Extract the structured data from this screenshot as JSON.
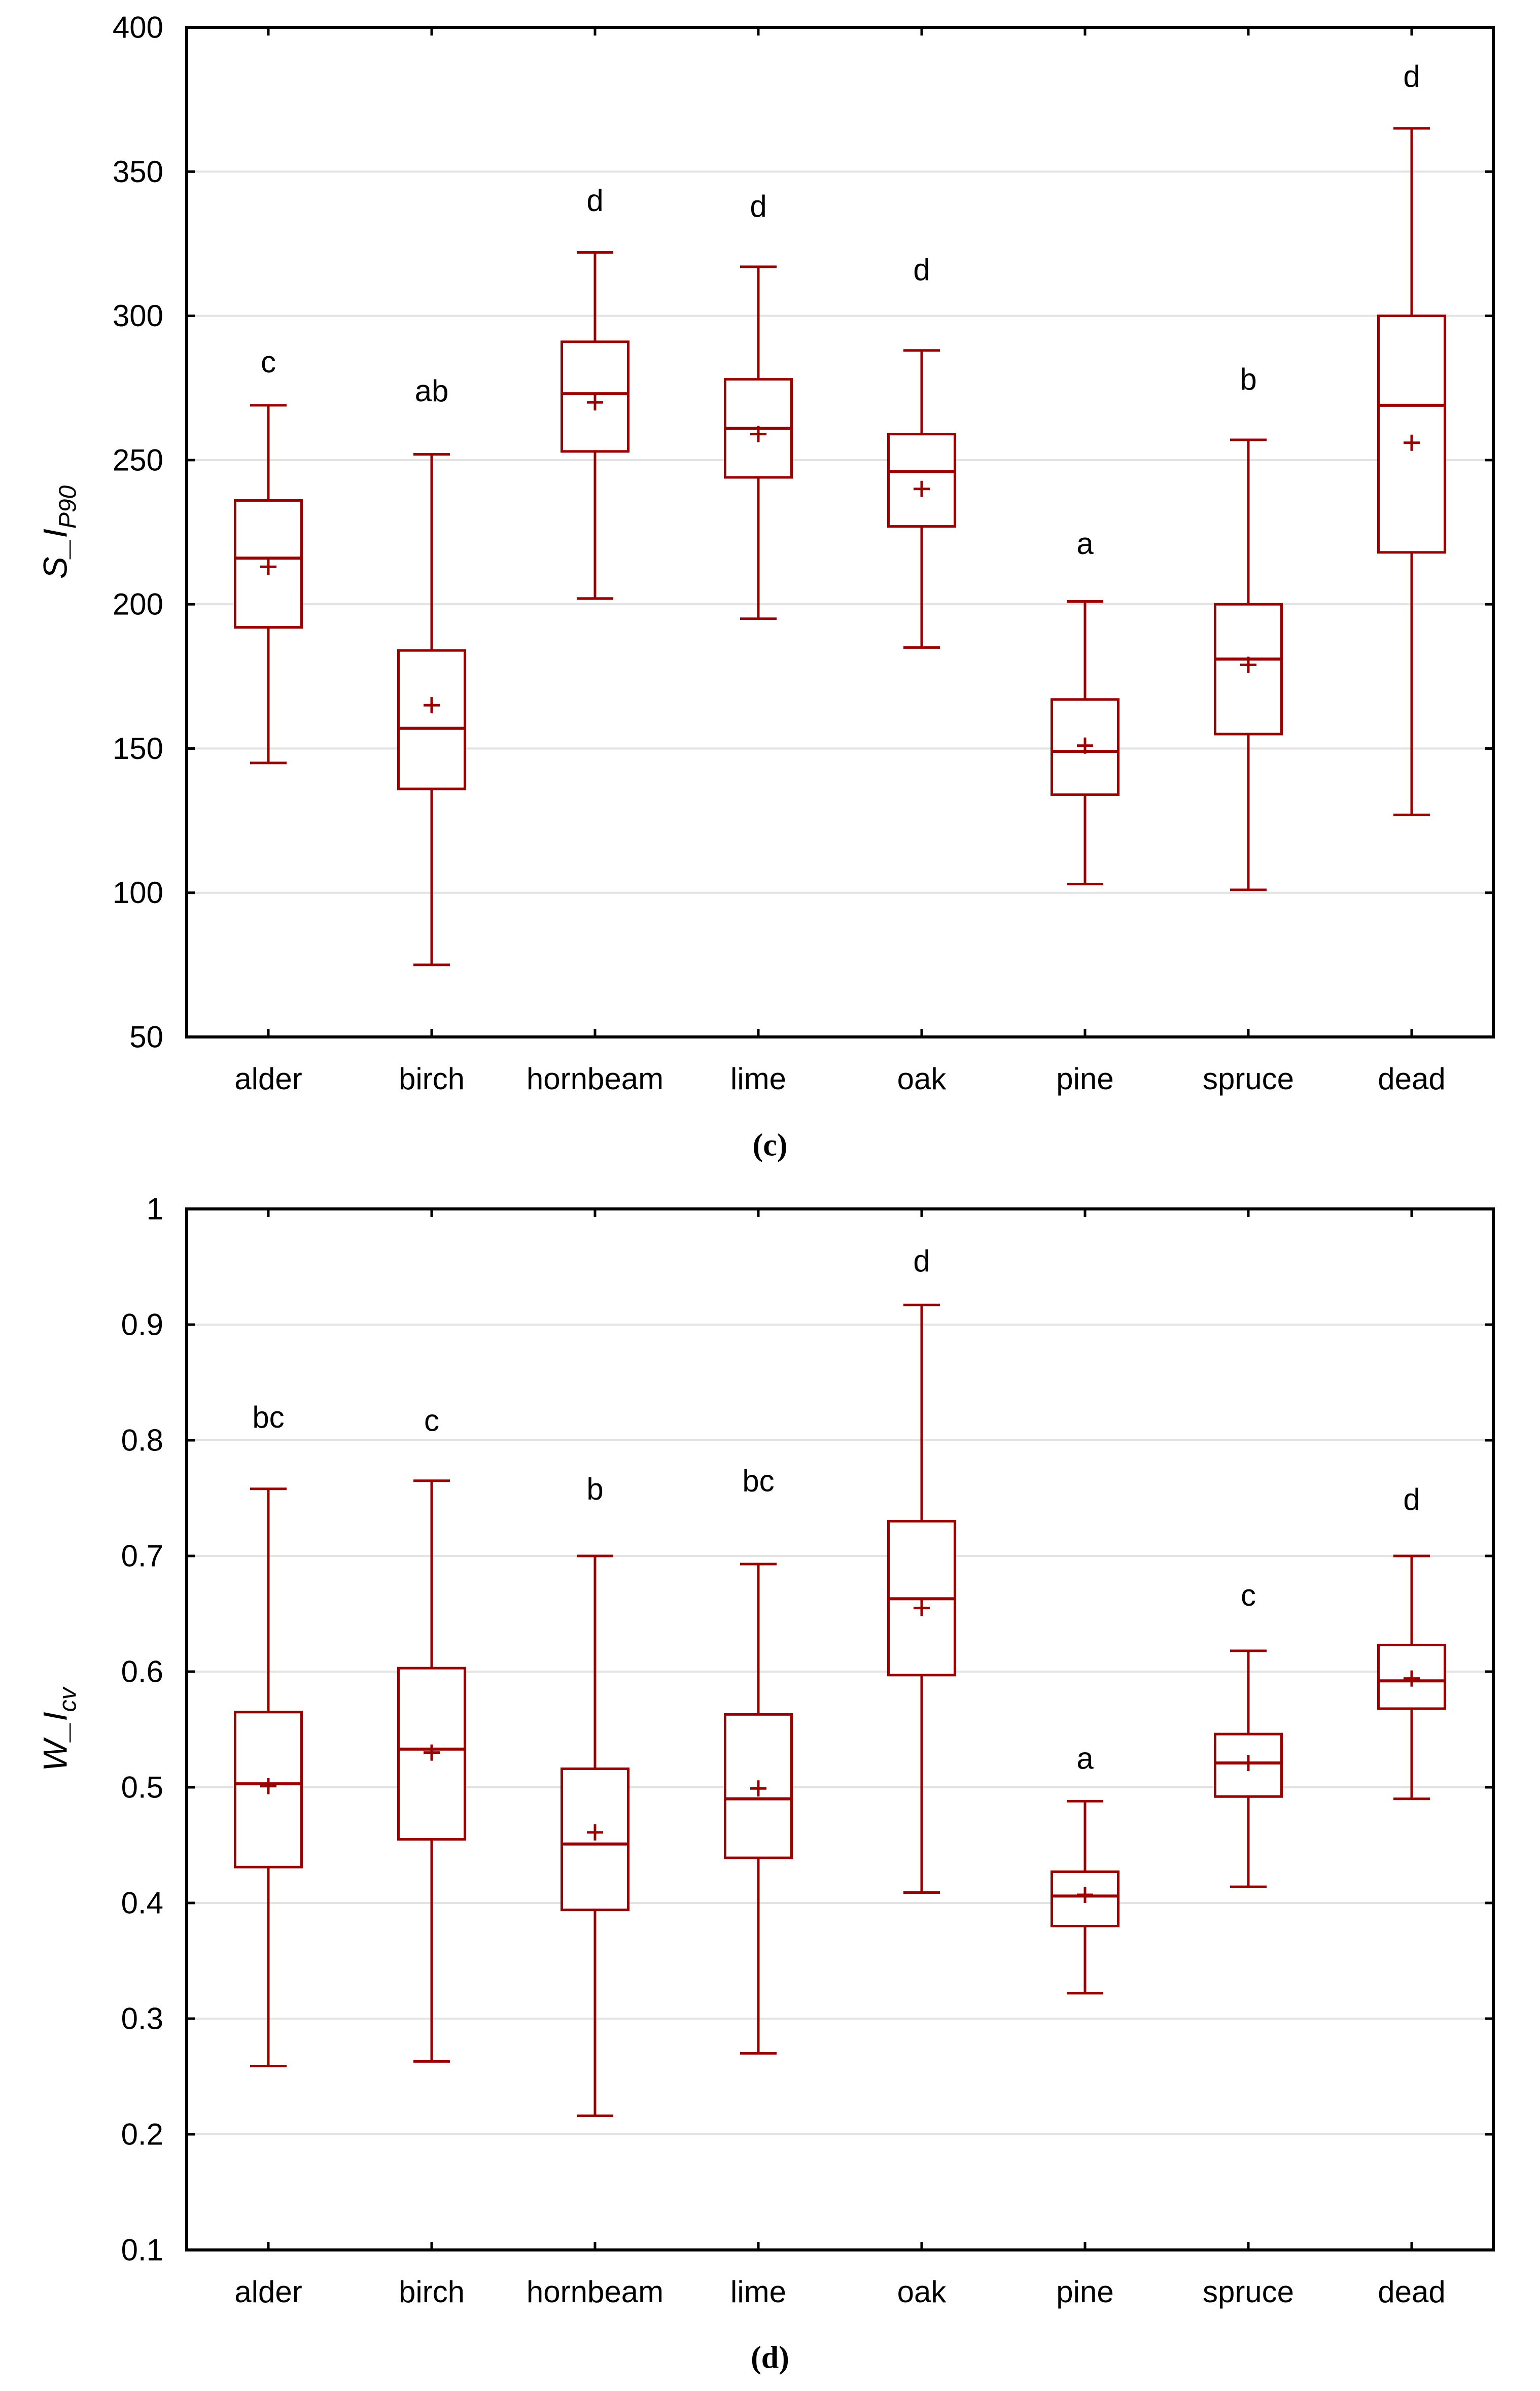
{
  "style": {
    "box_color": "#990000",
    "grid_color": "#e3e3e3",
    "axis_color": "#000000",
    "text_color": "#000000",
    "background": "#ffffff"
  },
  "chart_data": [
    {
      "type": "box",
      "title": "(c)",
      "ylabel": {
        "main": "S_I",
        "sub": "P90"
      },
      "categories": [
        "alder",
        "birch",
        "hornbeam",
        "lime",
        "oak",
        "pine",
        "spruce",
        "dead"
      ],
      "ylim": [
        50,
        400
      ],
      "yticks": [
        400,
        350,
        300,
        250,
        200,
        150,
        100,
        50
      ],
      "ytick_labels": [
        "400",
        "350",
        "300",
        "250",
        "200",
        "150",
        "100",
        "50"
      ],
      "grid": "horizontal",
      "legend": "none",
      "series": [
        {
          "name": "alder",
          "letter": "c",
          "letter_y": 284,
          "whisker_low": 145,
          "q1": 192,
          "median": 216,
          "mean": 213,
          "q3": 236,
          "whisker_high": 269
        },
        {
          "name": "birch",
          "letter": "ab",
          "letter_y": 274,
          "whisker_low": 75,
          "q1": 136,
          "median": 157,
          "mean": 165,
          "q3": 184,
          "whisker_high": 252
        },
        {
          "name": "hornbeam",
          "letter": "d",
          "letter_y": 340,
          "whisker_low": 202,
          "q1": 253,
          "median": 273,
          "mean": 270,
          "q3": 291,
          "whisker_high": 322
        },
        {
          "name": "lime",
          "letter": "d",
          "letter_y": 338,
          "whisker_low": 195,
          "q1": 244,
          "median": 261,
          "mean": 259,
          "q3": 278,
          "whisker_high": 317
        },
        {
          "name": "oak",
          "letter": "d",
          "letter_y": 316,
          "whisker_low": 185,
          "q1": 227,
          "median": 246,
          "mean": 240,
          "q3": 259,
          "whisker_high": 288
        },
        {
          "name": "pine",
          "letter": "a",
          "letter_y": 221,
          "whisker_low": 103,
          "q1": 134,
          "median": 149,
          "mean": 151,
          "q3": 167,
          "whisker_high": 201
        },
        {
          "name": "spruce",
          "letter": "b",
          "letter_y": 278,
          "whisker_low": 101,
          "q1": 155,
          "median": 181,
          "mean": 179,
          "q3": 200,
          "whisker_high": 257
        },
        {
          "name": "dead",
          "letter": "d",
          "letter_y": 383,
          "whisker_low": 127,
          "q1": 218,
          "median": 269,
          "mean": 256,
          "q3": 300,
          "whisker_high": 365
        }
      ]
    },
    {
      "type": "box",
      "title": "(d)",
      "ylabel": {
        "main": "W_I",
        "sub": "cv"
      },
      "categories": [
        "alder",
        "birch",
        "hornbeam",
        "lime",
        "oak",
        "pine",
        "spruce",
        "dead"
      ],
      "ylim": [
        0.1,
        1
      ],
      "yticks": [
        1,
        0.9,
        0.8,
        0.7,
        0.6,
        0.5,
        0.4,
        0.3,
        0.2,
        0.1
      ],
      "ytick_labels": [
        "1",
        "0.9",
        "0.8",
        "0.7",
        "0.6",
        "0.5",
        "0.4",
        "0.3",
        "0.2",
        "0.1"
      ],
      "grid": "horizontal",
      "legend": "none",
      "series": [
        {
          "name": "alder",
          "letter": "bc",
          "letter_y": 0.82,
          "whisker_low": 0.259,
          "q1": 0.431,
          "median": 0.503,
          "mean": 0.501,
          "q3": 0.565,
          "whisker_high": 0.758
        },
        {
          "name": "birch",
          "letter": "c",
          "letter_y": 0.817,
          "whisker_low": 0.263,
          "q1": 0.455,
          "median": 0.533,
          "mean": 0.53,
          "q3": 0.603,
          "whisker_high": 0.765
        },
        {
          "name": "hornbeam",
          "letter": "b",
          "letter_y": 0.758,
          "whisker_low": 0.216,
          "q1": 0.394,
          "median": 0.451,
          "mean": 0.461,
          "q3": 0.516,
          "whisker_high": 0.7
        },
        {
          "name": "lime",
          "letter": "bc",
          "letter_y": 0.765,
          "whisker_low": 0.27,
          "q1": 0.439,
          "median": 0.49,
          "mean": 0.499,
          "q3": 0.563,
          "whisker_high": 0.693
        },
        {
          "name": "oak",
          "letter": "d",
          "letter_y": 0.955,
          "whisker_low": 0.409,
          "q1": 0.597,
          "median": 0.663,
          "mean": 0.655,
          "q3": 0.73,
          "whisker_high": 0.917
        },
        {
          "name": "pine",
          "letter": "a",
          "letter_y": 0.525,
          "whisker_low": 0.322,
          "q1": 0.38,
          "median": 0.406,
          "mean": 0.407,
          "q3": 0.427,
          "whisker_high": 0.488
        },
        {
          "name": "spruce",
          "letter": "c",
          "letter_y": 0.666,
          "whisker_low": 0.414,
          "q1": 0.492,
          "median": 0.521,
          "mean": 0.521,
          "q3": 0.546,
          "whisker_high": 0.618
        },
        {
          "name": "dead",
          "letter": "d",
          "letter_y": 0.749,
          "whisker_low": 0.49,
          "q1": 0.568,
          "median": 0.592,
          "mean": 0.594,
          "q3": 0.623,
          "whisker_high": 0.7
        }
      ]
    }
  ]
}
